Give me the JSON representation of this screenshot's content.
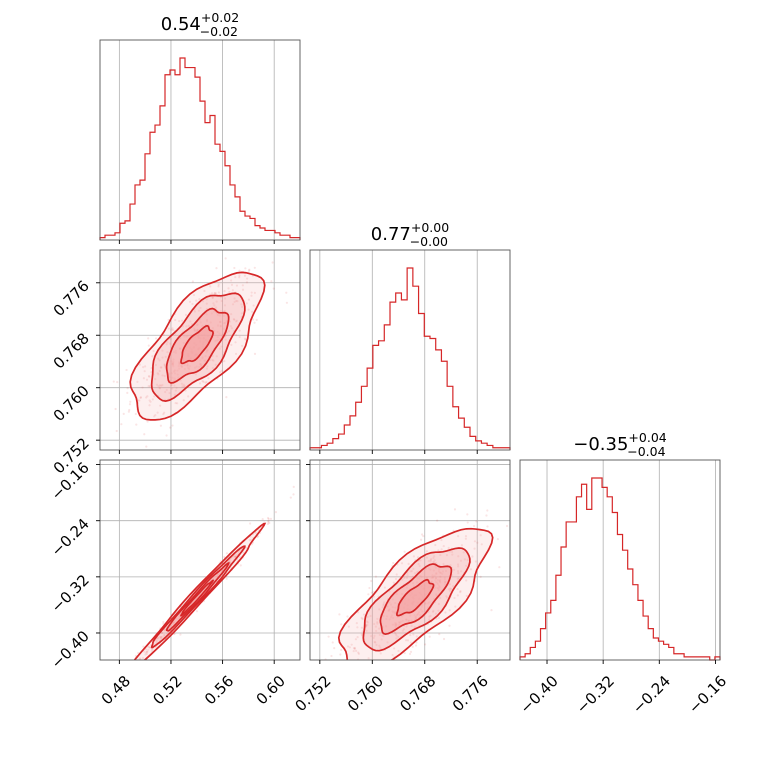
{
  "chart_data": {
    "type": "corner",
    "color": "#d62728",
    "fill_color": "#f4a4a4",
    "grid": true,
    "params": [
      {
        "title": {
          "value": "0.54",
          "plus": "+0.02",
          "minus": "−0.02"
        },
        "range": [
          0.465,
          0.62
        ],
        "ticks": [
          0.48,
          0.52,
          0.56,
          0.6
        ],
        "tick_labels": [
          "0.48",
          "0.52",
          "0.56",
          "0.60"
        ]
      },
      {
        "title": {
          "value": "0.77",
          "plus": "+0.00",
          "minus": "−0.00"
        },
        "range": [
          0.7505,
          0.781
        ],
        "ticks": [
          0.752,
          0.76,
          0.768,
          0.776
        ],
        "tick_labels": [
          "0.752",
          "0.760",
          "0.768",
          "0.776"
        ]
      },
      {
        "title": {
          "value": "−0.35",
          "plus": "+0.04",
          "minus": "−0.04"
        },
        "range": [
          -0.4385,
          -0.1535
        ],
        "ticks": [
          -0.4,
          -0.32,
          -0.24,
          -0.16
        ],
        "tick_labels": [
          "−0.40",
          "−0.32",
          "−0.24",
          "−0.16"
        ]
      }
    ],
    "histograms": [
      {
        "counts": [
          1,
          2,
          2,
          3,
          7,
          8,
          15,
          23,
          25,
          36,
          45,
          48,
          56,
          69,
          71,
          69,
          76,
          72,
          72,
          68,
          58,
          49,
          52,
          40,
          37,
          31,
          23,
          18,
          12,
          10,
          9,
          6,
          5,
          4,
          4,
          3,
          2,
          2,
          1,
          1
        ]
      },
      {
        "counts": [
          1,
          1,
          2,
          3,
          5,
          7,
          11,
          15,
          21,
          28,
          36,
          46,
          48,
          55,
          65,
          69,
          66,
          80,
          72,
          60,
          50,
          49,
          44,
          39,
          28,
          19,
          14,
          10,
          6,
          4,
          3,
          2,
          1,
          1,
          1
        ]
      },
      {
        "counts": [
          1,
          2,
          4,
          6,
          10,
          15,
          19,
          27,
          36,
          44,
          44,
          52,
          56,
          48,
          58,
          58,
          55,
          52,
          47,
          40,
          35,
          29,
          24,
          19,
          14,
          10,
          7,
          6,
          5,
          4,
          2,
          2,
          1,
          1,
          1,
          1,
          1,
          0,
          1
        ]
      }
    ],
    "joint": [
      {
        "x": 1,
        "y": 0,
        "mean": [
          0.54,
          0.7665
        ],
        "sd": [
          0.02,
          0.0045
        ],
        "corr": 0.7
      },
      {
        "x": 2,
        "y": 0,
        "mean": [
          0.54,
          -0.35
        ],
        "sd": [
          0.02,
          0.04
        ],
        "corr": 0.99
      },
      {
        "x": 2,
        "y": 1,
        "mean": [
          0.7665,
          -0.35
        ],
        "sd": [
          0.0045,
          0.04
        ],
        "corr": 0.75
      }
    ]
  }
}
